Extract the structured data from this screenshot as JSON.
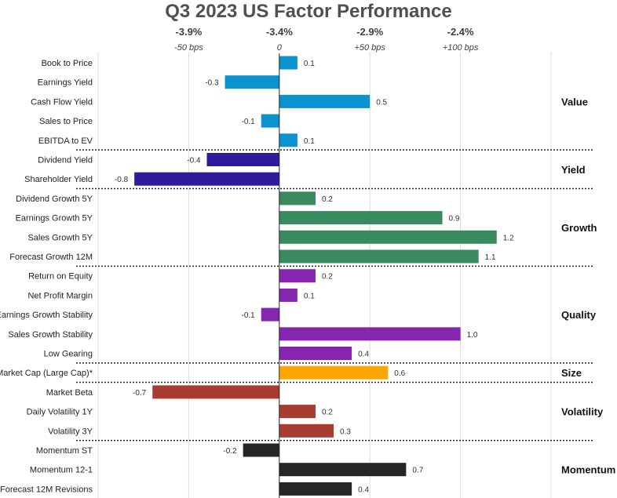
{
  "chart_data": {
    "type": "bar",
    "orientation": "horizontal",
    "title": "Q3 2023 US Factor Performance",
    "top_axis_percent_labels": [
      {
        "value": -0.5,
        "label": "-3.9%"
      },
      {
        "value": 0,
        "label": "-3.4%"
      },
      {
        "value": 0.5,
        "label": "-2.9%"
      },
      {
        "value": 1.0,
        "label": "-2.4%"
      }
    ],
    "top_axis_bps_labels": [
      {
        "value": -0.5,
        "label": "-50 bps"
      },
      {
        "value": 0,
        "label": "0"
      },
      {
        "value": 0.5,
        "label": "+50 bps"
      },
      {
        "value": 1.0,
        "label": "+100 bps"
      }
    ],
    "xlim": [
      -1.0,
      1.5
    ],
    "grid": true,
    "groups": [
      {
        "name": "Value",
        "color": "#0a93cf",
        "categories": [
          "Book to Price",
          "Earnings Yield",
          "Cash Flow Yield",
          "Sales to Price",
          "EBITDA to EV"
        ],
        "values": [
          0.1,
          -0.3,
          0.5,
          -0.1,
          0.1
        ]
      },
      {
        "name": "Yield",
        "color": "#2f1b9c",
        "categories": [
          "Dividend Yield",
          "Shareholder Yield"
        ],
        "values": [
          -0.4,
          -0.8
        ]
      },
      {
        "name": "Growth",
        "color": "#3a8a60",
        "categories": [
          "Dividend Growth 5Y",
          "Earnings Growth 5Y",
          "Sales Growth 5Y",
          "Forecast Growth 12M"
        ],
        "values": [
          0.2,
          0.9,
          1.2,
          1.1
        ]
      },
      {
        "name": "Quality",
        "color": "#8525b0",
        "categories": [
          "Return on Equity",
          "Net Profit Margin",
          "Earnings Growth Stability",
          "Sales Growth Stability",
          "Low Gearing"
        ],
        "values": [
          0.2,
          0.1,
          -0.1,
          1.0,
          0.4
        ]
      },
      {
        "name": "Size",
        "color": "#ffa500",
        "categories": [
          "Market Cap (Large Cap)*"
        ],
        "values": [
          0.6
        ]
      },
      {
        "name": "Volatility",
        "color": "#a83c30",
        "categories": [
          "Market Beta",
          "Daily Volatility 1Y",
          "Volatility 3Y"
        ],
        "values": [
          -0.7,
          0.2,
          0.3
        ]
      },
      {
        "name": "Momentum",
        "color": "#262626",
        "categories": [
          "Momentum ST",
          "Momentum 12-1",
          "Forecast 12M Revisions"
        ],
        "values": [
          -0.2,
          0.7,
          0.4
        ]
      }
    ]
  }
}
